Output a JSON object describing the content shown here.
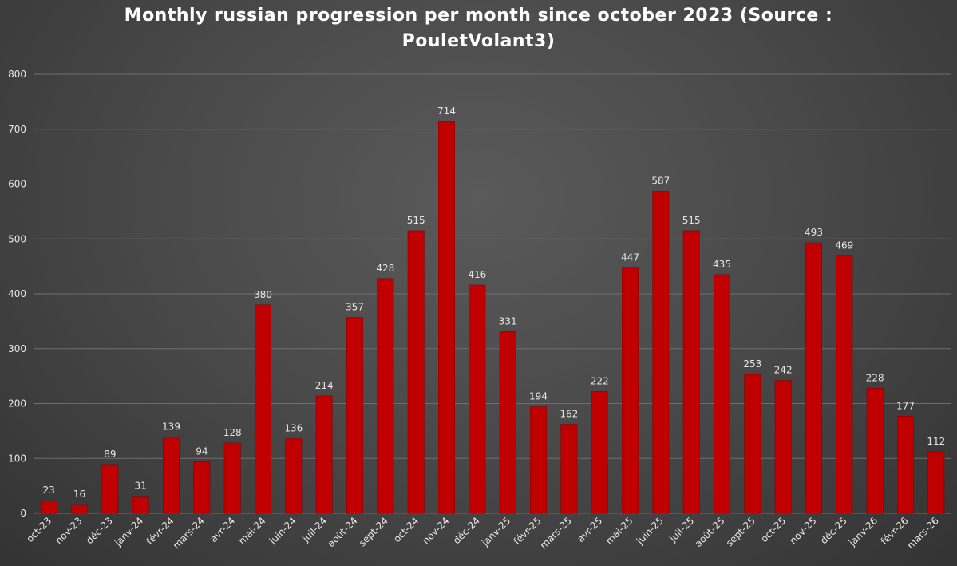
{
  "chart_data": {
    "type": "bar",
    "title_line1": "Monthly russian progression per month since october 2023 (Source :",
    "title_line2": "PouletVolant3)",
    "categories": [
      "oct-23",
      "nov-23",
      "déc-23",
      "janv-24",
      "févr-24",
      "mars-24",
      "avr-24",
      "mai-24",
      "juin-24",
      "juil-24",
      "août-24",
      "sept-24",
      "oct-24",
      "nov-24",
      "déc-24",
      "janv-25",
      "févr-25",
      "mars-25",
      "avr-25",
      "mai-25",
      "juin-25",
      "juil-25",
      "août-25",
      "sept-25",
      "oct-25",
      "nov-25",
      "déc-25",
      "janv-26",
      "févr-26",
      "mars-26"
    ],
    "values": [
      23,
      16,
      89,
      31,
      139,
      94,
      128,
      380,
      136,
      214,
      357,
      428,
      515,
      714,
      416,
      331,
      194,
      162,
      222,
      447,
      587,
      515,
      435,
      253,
      242,
      493,
      469,
      228,
      177,
      112
    ],
    "ylim": [
      0,
      800
    ],
    "yticks": [
      0,
      100,
      200,
      300,
      400,
      500,
      600,
      700,
      800
    ],
    "grid": true,
    "data_labels": true,
    "legend": "none",
    "colors": {
      "bar": "#c00000",
      "bar_edge": "#8a0000",
      "grid": "#6e6e6e",
      "text": "#e8e8e8"
    }
  }
}
